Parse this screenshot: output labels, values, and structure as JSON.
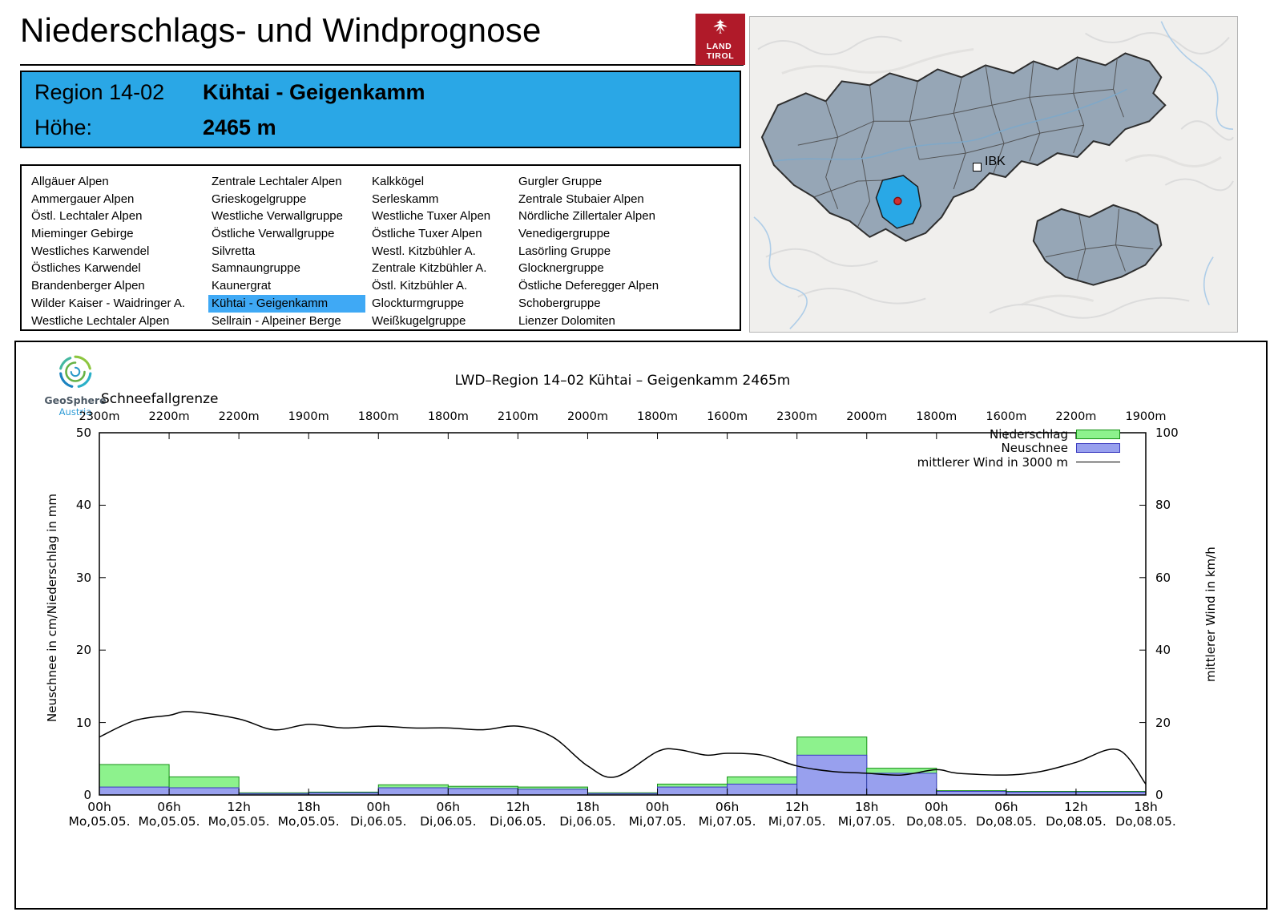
{
  "header": {
    "title": "Niederschlags- und Windprognose",
    "logo": {
      "line1": "LAND",
      "line2": "TIROL"
    }
  },
  "map": {
    "city_label": "IBK"
  },
  "region_header": {
    "region_label": "Region 14-02",
    "region_name": "Kühtai - Geigenkamm",
    "altitude_label": "Höhe:",
    "altitude_value": "2465 m"
  },
  "region_list": {
    "selected": "Kühtai - Geigenkamm",
    "columns": [
      [
        "Allgäuer Alpen",
        "Ammergauer Alpen",
        "Östl. Lechtaler Alpen",
        "Mieminger Gebirge",
        "Westliches Karwendel",
        "Östliches Karwendel",
        "Brandenberger Alpen",
        "Wilder Kaiser - Waidringer A.",
        "Westliche Lechtaler Alpen"
      ],
      [
        "Zentrale Lechtaler Alpen",
        "Grieskogelgruppe",
        "Westliche Verwallgruppe",
        "Östliche Verwallgruppe",
        "Silvretta",
        "Samnaungruppe",
        "Kaunergrat",
        "Kühtai - Geigenkamm",
        "Sellrain - Alpeiner Berge"
      ],
      [
        "Kalkkögel",
        "Serleskamm",
        "Westliche Tuxer Alpen",
        "Östliche Tuxer Alpen",
        "Westl. Kitzbühler A.",
        "Zentrale Kitzbühler A.",
        "Östl. Kitzbühler A.",
        "Glockturmgruppe",
        "Weißkugelgruppe"
      ],
      [
        "Gurgler Gruppe",
        "Zentrale Stubaier Alpen",
        "Nördliche Zillertaler Alpen",
        "Venedigergruppe",
        "Lasörling Gruppe",
        "Glocknergruppe",
        "Östliche Deferegger Alpen",
        "Schobergruppe",
        "Lienzer Dolomiten"
      ]
    ]
  },
  "chart": {
    "brand_name": "GeoSphere",
    "brand_sub": "Austria",
    "snowline_label": "Schneefallgrenze"
  },
  "chart_data": {
    "type": "bar",
    "title": "LWD–Region 14–02 Kühtai – Geigenkamm 2465m",
    "x_tick_hours": [
      "00h",
      "06h",
      "12h",
      "18h",
      "00h",
      "06h",
      "12h",
      "18h",
      "00h",
      "06h",
      "12h",
      "18h",
      "00h",
      "06h",
      "12h",
      "18h"
    ],
    "x_tick_dates": [
      "Mo,05.05.",
      "Mo,05.05.",
      "Mo,05.05.",
      "Mo,05.05.",
      "Di,06.05.",
      "Di,06.05.",
      "Di,06.05.",
      "Di,06.05.",
      "Mi,07.05.",
      "Mi,07.05.",
      "Mi,07.05.",
      "Mi,07.05.",
      "Do,08.05.",
      "Do,08.05.",
      "Do,08.05.",
      "Do,08.05."
    ],
    "snowline_m": [
      "2300m",
      "2200m",
      "2200m",
      "1900m",
      "1800m",
      "1800m",
      "2100m",
      "2000m",
      "1800m",
      "1600m",
      "2300m",
      "2000m",
      "1800m",
      "1600m",
      "2200m",
      "1900m"
    ],
    "y_left": {
      "label": "Neuschnee in cm/Niederschlag in mm",
      "range": [
        0,
        50
      ],
      "ticks": [
        0,
        10,
        20,
        30,
        40,
        50
      ]
    },
    "y_right": {
      "label": "mittlerer Wind in km/h",
      "range": [
        0,
        100
      ],
      "ticks": [
        0,
        20,
        40,
        60,
        80,
        100
      ]
    },
    "bars_note": "each bar covers a 6h interval between consecutive x ticks",
    "series": [
      {
        "name": "Niederschlag",
        "type": "bar",
        "unit": "mm",
        "color": "#8df28d",
        "border": "#169016",
        "values": [
          4.2,
          2.5,
          0.3,
          0.4,
          1.4,
          1.2,
          1.1,
          0.3,
          1.5,
          2.5,
          8.0,
          3.7,
          0.6,
          0.5,
          0.5
        ]
      },
      {
        "name": "Neuschnee",
        "type": "bar",
        "unit": "cm",
        "color": "#98a0ee",
        "border": "#3a3ac0",
        "values": [
          1.1,
          1.0,
          0.2,
          0.3,
          1.0,
          0.9,
          0.8,
          0.2,
          1.1,
          1.5,
          5.5,
          3.0,
          0.5,
          0.4,
          0.4
        ]
      },
      {
        "name": "mittlerer Wind in 3000 m",
        "type": "line",
        "unit": "km/h",
        "color": "#000000",
        "x": [
          0,
          0.5,
          1,
          1.3,
          2,
          2.5,
          3,
          3.5,
          4,
          4.5,
          5,
          5.5,
          6,
          6.5,
          7,
          7.4,
          8,
          8.3,
          8.7,
          9,
          9.5,
          10,
          10.5,
          11,
          11.5,
          12,
          12.3,
          13,
          13.5,
          14,
          14.6,
          15
        ],
        "values": [
          16,
          20.5,
          22,
          23,
          21,
          18,
          19.5,
          18.5,
          19,
          18.5,
          18.5,
          18,
          19,
          16,
          8,
          5,
          12,
          12.5,
          11,
          11.5,
          11,
          8,
          6.5,
          6,
          5.5,
          7,
          6,
          5.5,
          6.5,
          9,
          12.5,
          3
        ]
      }
    ]
  }
}
